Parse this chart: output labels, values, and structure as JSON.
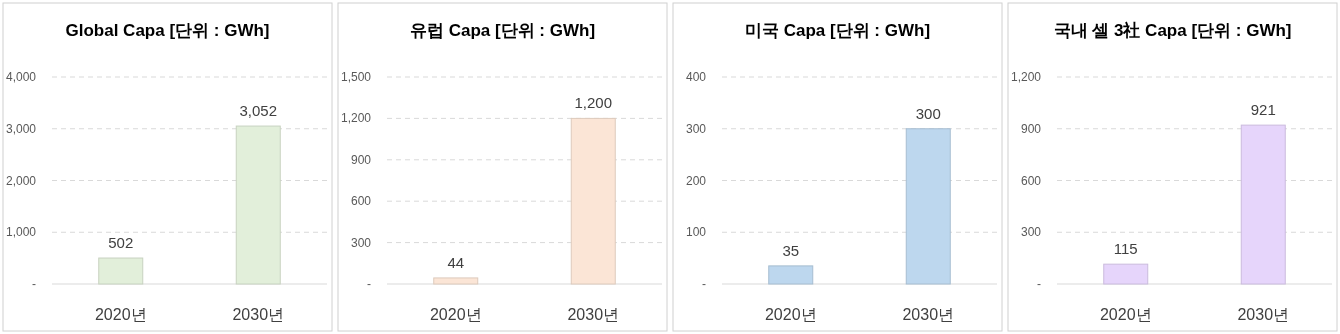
{
  "chart_data": [
    {
      "type": "bar",
      "title": "Global Capa [단위 : GWh]",
      "categories": [
        "2020년",
        "2030년"
      ],
      "values": [
        502,
        3052
      ],
      "color": "#e2efda",
      "ylim": [
        0,
        4000
      ],
      "yticks": [
        {
          "value": 0,
          "label": "-"
        },
        {
          "value": 1000,
          "label": "1,000"
        },
        {
          "value": 2000,
          "label": "2,000"
        },
        {
          "value": 3000,
          "label": "3,000"
        },
        {
          "value": 4000,
          "label": "4,000"
        }
      ],
      "grid": "y",
      "value_labels": [
        "502",
        "3,052"
      ]
    },
    {
      "type": "bar",
      "title": "유럽 Capa [단위 : GWh]",
      "categories": [
        "2020년",
        "2030년"
      ],
      "values": [
        44,
        1200
      ],
      "color": "#fbe5d6",
      "ylim": [
        0,
        1500
      ],
      "yticks": [
        {
          "value": 0,
          "label": "-"
        },
        300,
        600,
        900,
        {
          "value": 1200,
          "label": "1,200"
        },
        {
          "value": 1500,
          "label": "1,500"
        }
      ],
      "grid": "y",
      "value_labels": [
        "44",
        "1,200"
      ]
    },
    {
      "type": "bar",
      "title": "미국 Capa [단위 : GWh]",
      "categories": [
        "2020년",
        "2030년"
      ],
      "values": [
        35,
        300
      ],
      "color": "#bdd7ee",
      "ylim": [
        0,
        400
      ],
      "yticks": [
        {
          "value": 0,
          "label": "-"
        },
        100,
        200,
        300,
        400
      ],
      "grid": "y",
      "value_labels": [
        "35",
        "300"
      ]
    },
    {
      "type": "bar",
      "title": "국내 셀 3社 Capa [단위 : GWh]",
      "categories": [
        "2020년",
        "2030년"
      ],
      "values": [
        115,
        921
      ],
      "color": "#e6d5fb",
      "ylim": [
        0,
        1200
      ],
      "yticks": [
        {
          "value": 0,
          "label": "-"
        },
        300,
        600,
        900,
        {
          "value": 1200,
          "label": "1,200"
        }
      ],
      "grid": "y",
      "value_labels": [
        "115",
        "921"
      ]
    }
  ]
}
